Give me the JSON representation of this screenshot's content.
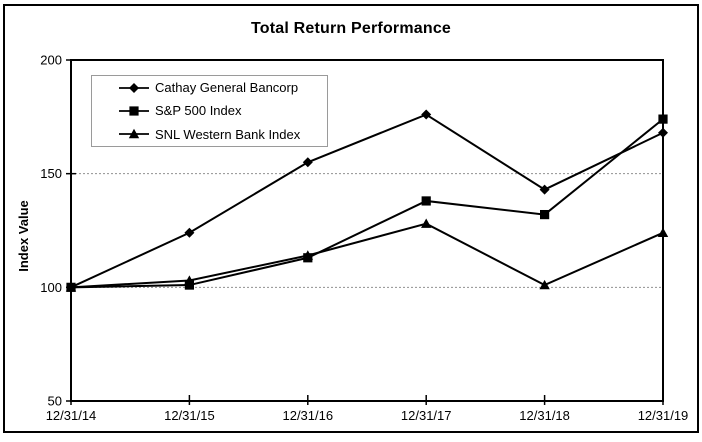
{
  "chart_data": {
    "type": "line",
    "title": "Total Return Performance",
    "xlabel": "",
    "ylabel": "Index Value",
    "categories": [
      "12/31/14",
      "12/31/15",
      "12/31/16",
      "12/31/17",
      "12/31/18",
      "12/31/19"
    ],
    "series": [
      {
        "name": "Cathay General Bancorp",
        "marker": "diamond",
        "values": [
          100,
          124,
          155,
          176,
          143,
          168
        ]
      },
      {
        "name": "S&P 500 Index",
        "marker": "square",
        "values": [
          100,
          101,
          113,
          138,
          132,
          174
        ]
      },
      {
        "name": "SNL Western Bank Index",
        "marker": "triangle",
        "values": [
          100,
          103,
          114,
          128,
          101,
          124
        ]
      }
    ],
    "ylim": [
      50,
      200
    ],
    "yticks": [
      50,
      100,
      150,
      200
    ],
    "gridlines_at": [
      100,
      150
    ],
    "grid": "dotted horizontal gridlines at 100 and 150 only",
    "legend_position": "top-left inside plot",
    "draw_order": [
      0,
      2,
      1
    ],
    "colors": {
      "line": "#000000",
      "marker": "#000000",
      "grid": "#909090",
      "background": "#ffffff",
      "legend_border": "#9a9a9a",
      "figure_border": "#000000",
      "text": "#000000"
    }
  }
}
